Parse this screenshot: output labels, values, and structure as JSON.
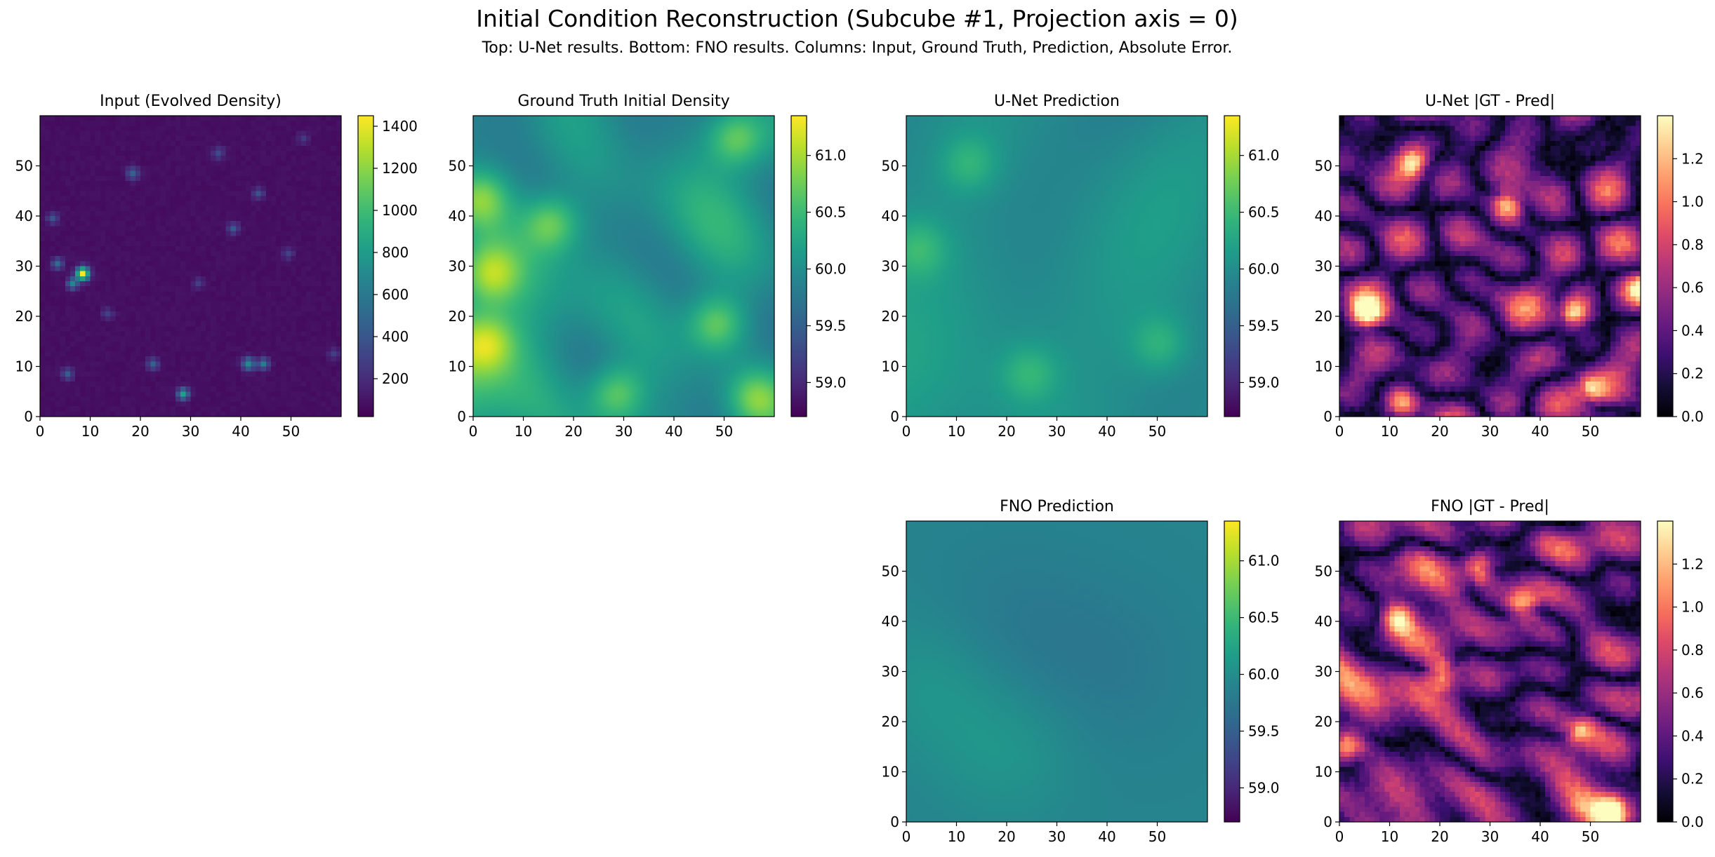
{
  "figure": {
    "title": "Initial Condition Reconstruction (Subcube #1, Projection axis = 0)",
    "subtitle": "Top: U-Net results. Bottom: FNO results. Columns: Input, Ground Truth, Prediction, Absolute Error."
  },
  "chart_data": [
    {
      "type": "heatmap",
      "title": "Input (Evolved Density)",
      "xlabel": "",
      "ylabel": "",
      "xlim": [
        0,
        60
      ],
      "ylim": [
        0,
        60
      ],
      "xticks": [
        0,
        10,
        20,
        30,
        40,
        50
      ],
      "yticks": [
        0,
        10,
        20,
        30,
        40,
        50
      ],
      "grid_size": [
        60,
        60
      ],
      "colormap": "viridis",
      "vmin": 20,
      "vmax": 1450,
      "colorbar_ticks": [
        200,
        400,
        600,
        800,
        1000,
        1200,
        1400
      ],
      "pixel_style": "pixelated",
      "features": {
        "mode": "sparse",
        "base": 70,
        "noise": 35,
        "peaks": [
          {
            "x": 8,
            "y": 28,
            "value": 1450,
            "sigma": 0.9
          },
          {
            "x": 6,
            "y": 26,
            "value": 650,
            "sigma": 0.8
          },
          {
            "x": 3,
            "y": 30,
            "value": 520,
            "sigma": 0.8
          },
          {
            "x": 28,
            "y": 4,
            "value": 820,
            "sigma": 0.8
          },
          {
            "x": 41,
            "y": 10,
            "value": 680,
            "sigma": 0.9
          },
          {
            "x": 44,
            "y": 10,
            "value": 600,
            "sigma": 0.8
          },
          {
            "x": 22,
            "y": 10,
            "value": 480,
            "sigma": 0.8
          },
          {
            "x": 5,
            "y": 8,
            "value": 420,
            "sigma": 0.8
          },
          {
            "x": 18,
            "y": 48,
            "value": 430,
            "sigma": 0.9
          },
          {
            "x": 38,
            "y": 37,
            "value": 420,
            "sigma": 0.8
          },
          {
            "x": 43,
            "y": 44,
            "value": 380,
            "sigma": 0.8
          },
          {
            "x": 2,
            "y": 39,
            "value": 380,
            "sigma": 0.8
          },
          {
            "x": 35,
            "y": 52,
            "value": 320,
            "sigma": 0.9
          },
          {
            "x": 13,
            "y": 20,
            "value": 300,
            "sigma": 0.8
          },
          {
            "x": 49,
            "y": 32,
            "value": 300,
            "sigma": 0.8
          },
          {
            "x": 58,
            "y": 12,
            "value": 280,
            "sigma": 0.8
          },
          {
            "x": 31,
            "y": 26,
            "value": 260,
            "sigma": 0.8
          },
          {
            "x": 52,
            "y": 55,
            "value": 260,
            "sigma": 0.8
          }
        ]
      }
    },
    {
      "type": "heatmap",
      "title": "Ground Truth Initial Density",
      "xlabel": "",
      "ylabel": "",
      "xlim": [
        0,
        60
      ],
      "ylim": [
        0,
        60
      ],
      "xticks": [
        0,
        10,
        20,
        30,
        40,
        50
      ],
      "yticks": [
        0,
        10,
        20,
        30,
        40,
        50
      ],
      "grid_size": [
        60,
        60
      ],
      "colormap": "viridis",
      "vmin": 58.7,
      "vmax": 61.35,
      "colorbar_ticks": [
        59.0,
        59.5,
        60.0,
        60.5,
        61.0
      ],
      "pixel_style": "smooth",
      "features": {
        "mode": "field",
        "seed": 11,
        "mean": 60.0,
        "amplitude": 0.85,
        "frequencies": [
          3,
          6
        ],
        "highs": [
          [
            3,
            28
          ],
          [
            48,
            18
          ],
          [
            56,
            3
          ],
          [
            28,
            4
          ],
          [
            1,
            43
          ],
          [
            15,
            38
          ],
          [
            52,
            55
          ],
          [
            2,
            14
          ]
        ]
      }
    },
    {
      "type": "heatmap",
      "title": "U-Net Prediction",
      "xlabel": "",
      "ylabel": "",
      "xlim": [
        0,
        60
      ],
      "ylim": [
        0,
        60
      ],
      "xticks": [
        0,
        10,
        20,
        30,
        40,
        50
      ],
      "yticks": [
        0,
        10,
        20,
        30,
        40,
        50
      ],
      "grid_size": [
        60,
        60
      ],
      "colormap": "viridis",
      "vmin": 58.7,
      "vmax": 61.35,
      "colorbar_ticks": [
        59.0,
        59.5,
        60.0,
        60.5,
        61.0
      ],
      "pixel_style": "smooth",
      "features": {
        "mode": "field",
        "seed": 11,
        "mean": 60.0,
        "amplitude": 0.45,
        "frequencies": [
          3
        ],
        "highs": [
          [
            12,
            50
          ],
          [
            50,
            14
          ],
          [
            24,
            8
          ],
          [
            2,
            33
          ]
        ]
      }
    },
    {
      "type": "heatmap",
      "title": "U-Net |GT - Pred|",
      "xlabel": "",
      "ylabel": "",
      "xlim": [
        0,
        60
      ],
      "ylim": [
        0,
        60
      ],
      "xticks": [
        0,
        10,
        20,
        30,
        40,
        50
      ],
      "yticks": [
        0,
        10,
        20,
        30,
        40,
        50
      ],
      "grid_size": [
        60,
        60
      ],
      "colormap": "magma",
      "vmin": 0.0,
      "vmax": 1.4,
      "colorbar_ticks": [
        0.0,
        0.2,
        0.4,
        0.6,
        0.8,
        1.0,
        1.2
      ],
      "pixel_style": "pixelated",
      "features": {
        "mode": "error",
        "seed": 23,
        "scale": 0.35,
        "highs": [
          [
            14,
            50
          ],
          [
            33,
            42
          ],
          [
            46,
            20
          ],
          [
            49,
            5
          ],
          [
            5,
            20
          ],
          [
            60,
            25
          ],
          [
            12,
            2
          ]
        ]
      }
    },
    {
      "type": "heatmap",
      "title": "FNO Prediction",
      "xlabel": "",
      "ylabel": "",
      "xlim": [
        0,
        60
      ],
      "ylim": [
        0,
        60
      ],
      "xticks": [
        0,
        10,
        20,
        30,
        40,
        50
      ],
      "yticks": [
        0,
        10,
        20,
        30,
        40,
        50
      ],
      "grid_size": [
        60,
        60
      ],
      "colormap": "viridis",
      "vmin": 58.7,
      "vmax": 61.35,
      "colorbar_ticks": [
        59.0,
        59.5,
        60.0,
        60.5,
        61.0
      ],
      "pixel_style": "smooth",
      "features": {
        "mode": "smooth",
        "mean": 59.9,
        "amplitude": 0.1,
        "highs": [
          [
            5,
            27
          ],
          [
            20,
            14
          ]
        ],
        "lows": [
          [
            20,
            38
          ],
          [
            40,
            30
          ]
        ]
      }
    },
    {
      "type": "heatmap",
      "title": "FNO |GT - Pred|",
      "xlabel": "",
      "ylabel": "",
      "xlim": [
        0,
        60
      ],
      "ylim": [
        0,
        60
      ],
      "xticks": [
        0,
        10,
        20,
        30,
        40,
        50
      ],
      "yticks": [
        0,
        10,
        20,
        30,
        40,
        50
      ],
      "grid_size": [
        60,
        60
      ],
      "colormap": "magma",
      "vmin": 0.0,
      "vmax": 1.4,
      "colorbar_ticks": [
        0.0,
        0.2,
        0.4,
        0.6,
        0.8,
        1.0,
        1.2
      ],
      "pixel_style": "pixelated",
      "features": {
        "mode": "error",
        "seed": 47,
        "scale": 0.4,
        "highs": [
          [
            47,
            18
          ],
          [
            36,
            43
          ],
          [
            2,
            15
          ],
          [
            54,
            2
          ],
          [
            11,
            40
          ],
          [
            27,
            50
          ],
          [
            20,
            29
          ]
        ]
      }
    }
  ]
}
